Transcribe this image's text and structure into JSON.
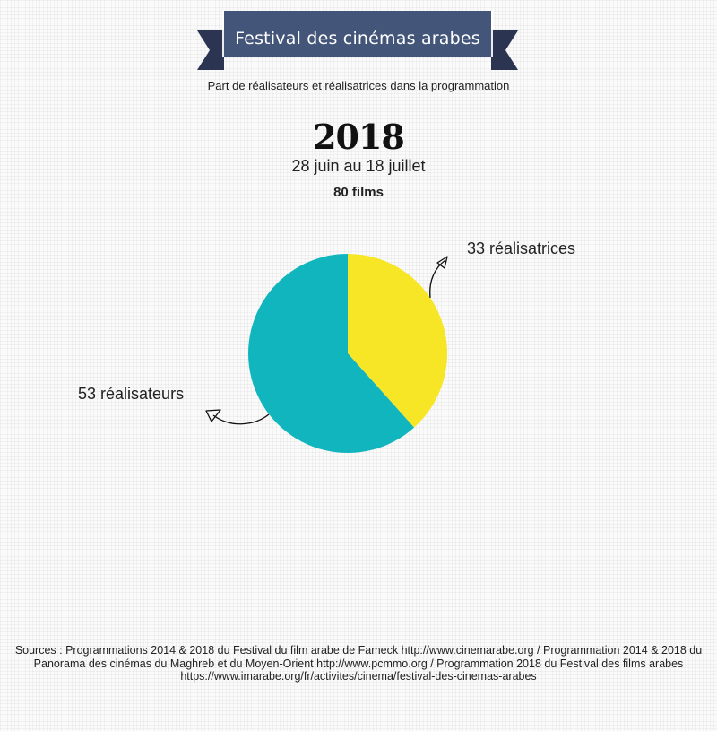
{
  "header": {
    "title": "Festival des cinémas arabes",
    "subtitle": "Part de réalisateurs et réalisatrices dans la programmation",
    "banner_color": "#44557a",
    "banner_dark": "#2b3552"
  },
  "edition": {
    "year": "2018",
    "dates": "28 juin au 18 juillet",
    "films": "80 films"
  },
  "chart_data": {
    "type": "pie",
    "slices": [
      {
        "label": "33 réalisatrices",
        "value": 33,
        "color": "#f7e626"
      },
      {
        "label": "53 réalisateurs",
        "value": 53,
        "color": "#10b5bd"
      }
    ]
  },
  "footer": {
    "sources": "Sources : Programmations 2014 & 2018 du Festival du film arabe de Fameck http://www.cinemarabe.org  / Programmation 2014 & 2018 du Panorama des cinémas du Maghreb et du Moyen-Orient http://www.pcmmo.org  / Programmation 2018 du Festival des films arabes https://www.imarabe.org/fr/activites/cinema/festival-des-cinemas-arabes"
  }
}
